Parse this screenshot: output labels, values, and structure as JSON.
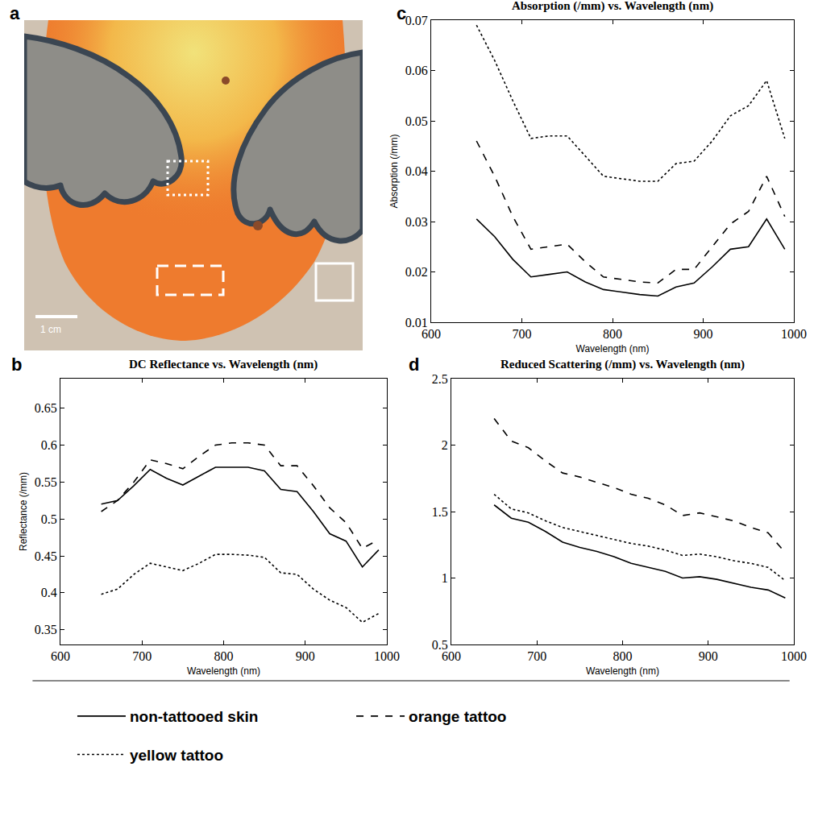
{
  "image": {
    "panel": "a",
    "scale_bar": "1 cm"
  },
  "chart_data": [
    {
      "panel": "b",
      "type": "line",
      "title": "DC Reflectance vs. Wavelength (nm)",
      "x_label": "Wavelength (nm)",
      "y_label": "Reflectance (/mm)",
      "x": [
        650,
        670,
        690,
        710,
        730,
        750,
        770,
        790,
        810,
        830,
        850,
        870,
        890,
        910,
        930,
        950,
        970,
        990
      ],
      "series": [
        {
          "name": "non-tattooed skin",
          "color": "#000000",
          "line_style": "solid",
          "values": [
            0.52,
            0.525,
            0.545,
            0.567,
            0.555,
            0.546,
            0.558,
            0.57,
            0.57,
            0.57,
            0.565,
            0.54,
            0.537,
            0.51,
            0.48,
            0.47,
            0.435,
            0.458
          ]
        },
        {
          "name": "orange tattoo",
          "color": "#000000",
          "line_style": "dash",
          "values": [
            0.51,
            0.525,
            0.55,
            0.58,
            0.575,
            0.568,
            0.585,
            0.6,
            0.603,
            0.603,
            0.6,
            0.572,
            0.572,
            0.545,
            0.515,
            0.495,
            0.46,
            0.472
          ]
        },
        {
          "name": "yellow tattoo",
          "color": "#000000",
          "line_style": "dot",
          "values": [
            0.398,
            0.405,
            0.425,
            0.44,
            0.435,
            0.43,
            0.44,
            0.452,
            0.452,
            0.451,
            0.448,
            0.427,
            0.425,
            0.405,
            0.39,
            0.38,
            0.36,
            0.372
          ]
        }
      ],
      "xlim": [
        600,
        1000
      ],
      "xticks": [
        600,
        700,
        800,
        900,
        1000
      ],
      "ylim": [
        0.33,
        0.69
      ],
      "yticks": [
        0.35,
        0.4,
        0.45,
        0.5,
        0.55,
        0.6,
        0.65
      ],
      "grid": false,
      "legend": "bottom"
    },
    {
      "panel": "c",
      "type": "line",
      "title": "Absorption (/mm) vs. Wavelength (nm)",
      "x_label": "Wavelength (nm)",
      "y_label": "Absorption (/mm)",
      "x": [
        650,
        670,
        690,
        710,
        730,
        750,
        770,
        790,
        810,
        830,
        850,
        870,
        890,
        910,
        930,
        950,
        970,
        990
      ],
      "series": [
        {
          "name": "non-tattooed skin",
          "color": "#000000",
          "line_style": "solid",
          "values": [
            0.0305,
            0.027,
            0.0225,
            0.019,
            0.0195,
            0.02,
            0.018,
            0.0165,
            0.016,
            0.0155,
            0.0152,
            0.017,
            0.0178,
            0.021,
            0.0245,
            0.025,
            0.0305,
            0.0245
          ]
        },
        {
          "name": "orange tattoo",
          "color": "#000000",
          "line_style": "dash",
          "values": [
            0.046,
            0.039,
            0.031,
            0.0245,
            0.025,
            0.0255,
            0.022,
            0.019,
            0.0185,
            0.018,
            0.0178,
            0.0205,
            0.0205,
            0.025,
            0.0295,
            0.032,
            0.039,
            0.031
          ]
        },
        {
          "name": "yellow tattoo",
          "color": "#000000",
          "line_style": "dot",
          "values": [
            0.069,
            0.062,
            0.054,
            0.0465,
            0.047,
            0.047,
            0.043,
            0.039,
            0.0385,
            0.038,
            0.038,
            0.0415,
            0.042,
            0.046,
            0.051,
            0.053,
            0.058,
            0.0465
          ]
        }
      ],
      "xlim": [
        600,
        1000
      ],
      "xticks": [
        600,
        700,
        800,
        900,
        1000
      ],
      "ylim": [
        0.01,
        0.07
      ],
      "yticks": [
        0.01,
        0.02,
        0.03,
        0.04,
        0.05,
        0.06,
        0.07
      ],
      "grid": false,
      "legend": "bottom"
    },
    {
      "panel": "d",
      "type": "line",
      "title": "Reduced Scattering (/mm) vs. Wavelength (nm)",
      "x_label": "Wavelength (nm)",
      "x": [
        650,
        670,
        690,
        710,
        730,
        750,
        770,
        790,
        810,
        830,
        850,
        870,
        890,
        910,
        930,
        950,
        970,
        990
      ],
      "series": [
        {
          "name": "non-tattooed skin",
          "color": "#000000",
          "line_style": "solid",
          "values": [
            1.55,
            1.45,
            1.42,
            1.35,
            1.27,
            1.23,
            1.2,
            1.16,
            1.11,
            1.08,
            1.05,
            1.0,
            1.01,
            0.99,
            0.96,
            0.93,
            0.91,
            0.85
          ]
        },
        {
          "name": "orange tattoo",
          "color": "#000000",
          "line_style": "dash",
          "values": [
            2.2,
            2.03,
            1.98,
            1.88,
            1.79,
            1.76,
            1.72,
            1.68,
            1.63,
            1.6,
            1.55,
            1.47,
            1.49,
            1.46,
            1.43,
            1.38,
            1.34,
            1.19
          ]
        },
        {
          "name": "yellow tattoo",
          "color": "#000000",
          "line_style": "dot",
          "values": [
            1.63,
            1.52,
            1.49,
            1.43,
            1.38,
            1.35,
            1.32,
            1.29,
            1.26,
            1.24,
            1.21,
            1.17,
            1.18,
            1.16,
            1.13,
            1.11,
            1.08,
            0.98
          ]
        }
      ],
      "xlim": [
        600,
        1000
      ],
      "xticks": [
        600,
        700,
        800,
        900,
        1000
      ],
      "ylim": [
        0.5,
        2.5
      ],
      "yticks": [
        0.5,
        1,
        1.5,
        2,
        2.5
      ],
      "grid": false,
      "legend": "bottom"
    }
  ]
}
